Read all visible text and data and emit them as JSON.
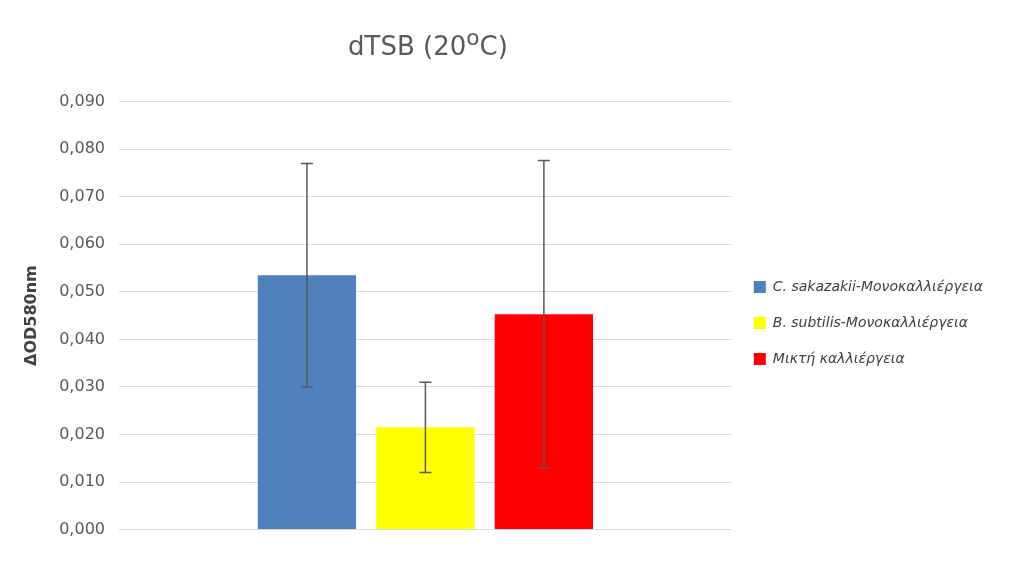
{
  "chart_data": {
    "type": "bar",
    "title": "dTSB (20$^{o}$C)",
    "ylabel": "ΔOD580nm",
    "categories": [
      null
    ],
    "series": [
      {
        "name": "C. sakazakii-Μονοκαλλιέργεια",
        "color": "#4f81bd",
        "values": [
          0.0535
        ],
        "errors": [
          [
            0.03,
            0.077
          ]
        ]
      },
      {
        "name": "B. subtilis-Μονοκαλλιέργεια",
        "color": "#ffff00",
        "values": [
          0.0215
        ],
        "errors": [
          [
            0.012,
            0.031
          ]
        ]
      },
      {
        "name": "Μικτή καλλιέργεια",
        "color": "#ff0000",
        "values": [
          0.0453
        ],
        "errors": [
          [
            0.013,
            0.0776
          ]
        ]
      }
    ],
    "ylim": [
      0,
      0.09
    ],
    "yticks": [
      {
        "value": 0,
        "label": "0,000"
      },
      {
        "value": 0.01,
        "label": "0,010"
      },
      {
        "value": 0.02,
        "label": "0,020"
      },
      {
        "value": 0.03,
        "label": "0,030"
      },
      {
        "value": 0.04,
        "label": "0,040"
      },
      {
        "value": 0.05,
        "label": "0,050"
      },
      {
        "value": 0.06,
        "label": "0,060"
      },
      {
        "value": 0.07,
        "label": "0,070"
      },
      {
        "value": 0.08,
        "label": "0,080"
      },
      {
        "value": 0.09,
        "label": "0,090"
      }
    ],
    "grid": "y",
    "legend": "right"
  }
}
